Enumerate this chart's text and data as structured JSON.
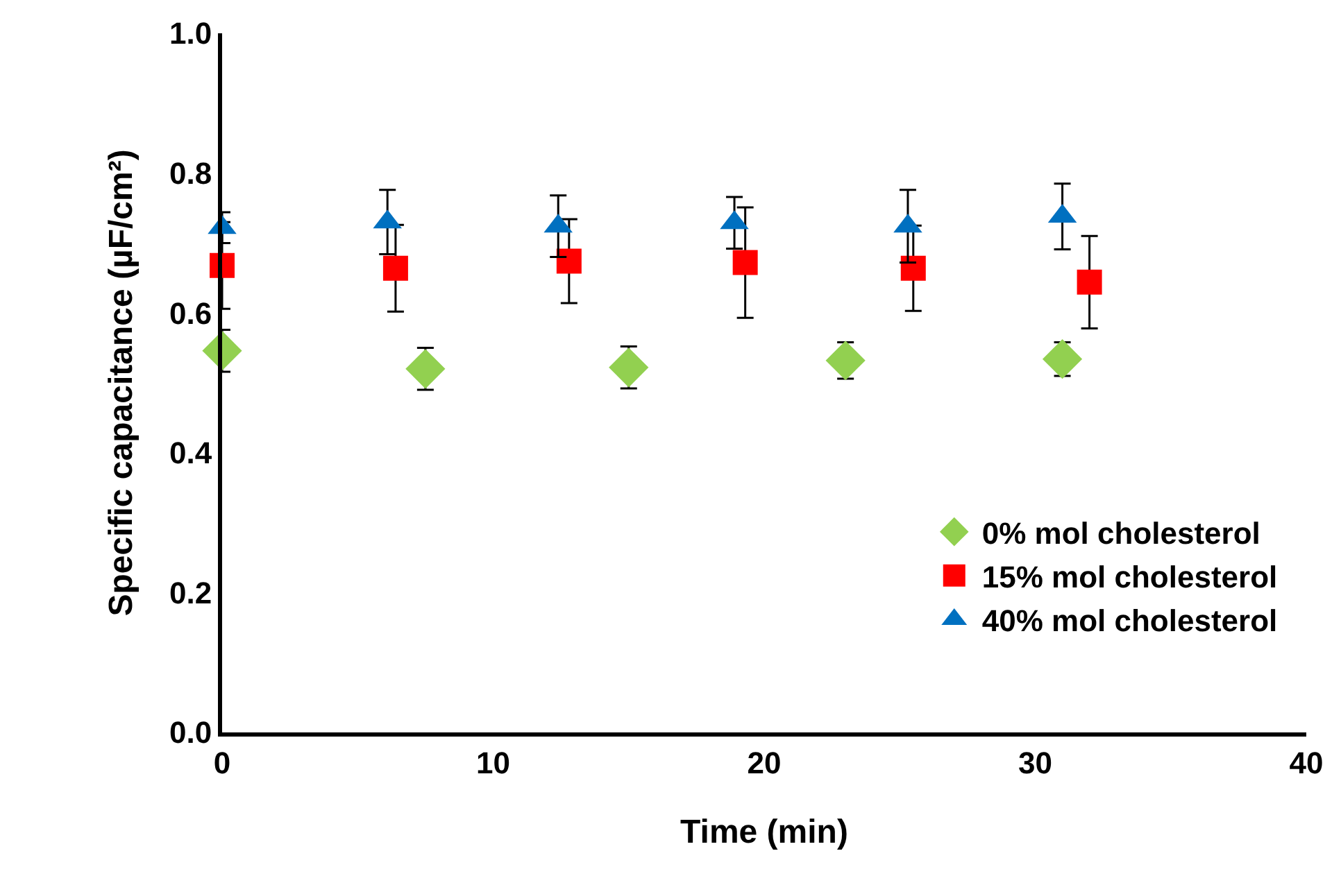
{
  "chart_data": {
    "type": "scatter",
    "xlabel": "Time (min)",
    "ylabel": "Specific capacitance (µF/cm²)",
    "xlim": [
      0,
      40
    ],
    "xticks": [
      0,
      10,
      20,
      30,
      40
    ],
    "ylim": [
      0,
      1
    ],
    "yticks": [
      {
        "value": 0,
        "label": "0.0"
      },
      0.2,
      0.4,
      0.6,
      0.8,
      {
        "value": 1,
        "label": "1.0"
      }
    ],
    "grid": false,
    "legend": "bottom right",
    "series": [
      {
        "name": "0% mol cholesterol",
        "color": "#92d050",
        "marker": "diamond",
        "x": [
          0,
          7.5,
          15,
          23,
          31
        ],
        "values": [
          0.546,
          0.52,
          0.522,
          0.532,
          0.534
        ],
        "errors": [
          0.03,
          0.03,
          0.03,
          0.026,
          0.024
        ]
      },
      {
        "name": "15% mol cholesterol",
        "color": "#ff0000",
        "marker": "square",
        "x": [
          0,
          6.4,
          12.8,
          19.3,
          25.5,
          32
        ],
        "values": [
          0.668,
          0.664,
          0.674,
          0.672,
          0.664,
          0.644
        ],
        "errors": [
          0.062,
          0.062,
          0.06,
          0.079,
          0.061,
          0.066
        ]
      },
      {
        "name": "40% mol cholesterol",
        "color": "#0070c0",
        "marker": "triangle",
        "x": [
          0,
          6.1,
          12.4,
          18.9,
          25.3,
          31
        ],
        "values": [
          0.722,
          0.73,
          0.724,
          0.729,
          0.724,
          0.738
        ],
        "errors": [
          0.022,
          0.046,
          0.044,
          0.037,
          0.052,
          0.047
        ]
      }
    ]
  }
}
